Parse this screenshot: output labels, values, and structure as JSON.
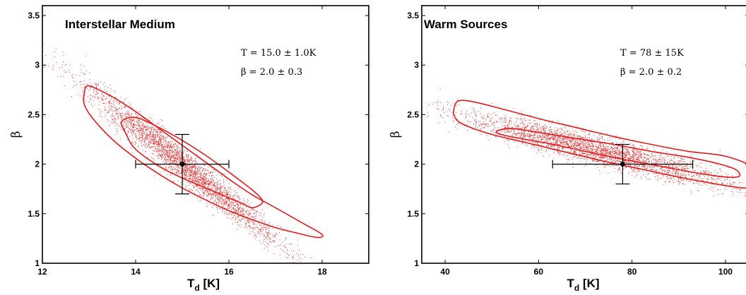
{
  "chart_data": [
    {
      "type": "scatter",
      "title": "Interstellar Medium",
      "xlabel_main": "T",
      "xlabel_sub": "d",
      "xlabel_unit": " [K]",
      "ylabel": "β",
      "xlim": [
        12,
        19
      ],
      "ylim": [
        1,
        3.6
      ],
      "xticks": [
        12,
        14,
        16,
        18
      ],
      "yticks": [
        1,
        1.5,
        2,
        2.5,
        3,
        3.5
      ],
      "ytick_labels": [
        "1",
        "1.5",
        "2",
        "2.5",
        "3",
        "3.5"
      ],
      "annotations": [
        "T = 15.0 ± 1.0K",
        "β = 2.0 ± 0.3"
      ],
      "point": {
        "x": 15.0,
        "y": 2.0,
        "xerr": 1.0,
        "yerr": 0.3
      },
      "cloud": {
        "center": [
          15.0,
          2.0
        ],
        "slope": -0.38,
        "along_sd": 1.05,
        "across_sd": 0.085,
        "n": 3200
      },
      "contours": [
        {
          "name": "inner",
          "x": [
            13.7,
            13.8,
            14.0,
            14.5,
            15.0,
            15.5,
            16.0,
            16.3,
            16.5,
            16.7,
            16.7,
            16.5,
            16.0,
            15.5,
            15.0,
            14.5,
            14.0,
            13.7
          ],
          "y": [
            2.43,
            2.3,
            2.15,
            1.98,
            1.86,
            1.76,
            1.66,
            1.6,
            1.56,
            1.6,
            1.65,
            1.74,
            1.92,
            2.09,
            2.24,
            2.37,
            2.47,
            2.43
          ]
        },
        {
          "name": "outer",
          "x": [
            12.9,
            12.9,
            13.1,
            13.5,
            14.0,
            14.5,
            15.0,
            15.5,
            16.0,
            16.5,
            17.0,
            17.5,
            17.9,
            18.0,
            17.6,
            17.0,
            16.5,
            16.0,
            15.5,
            15.0,
            14.5,
            14.0,
            13.5,
            13.0,
            12.9
          ],
          "y": [
            2.72,
            2.6,
            2.45,
            2.25,
            2.06,
            1.9,
            1.76,
            1.64,
            1.53,
            1.44,
            1.36,
            1.3,
            1.26,
            1.29,
            1.4,
            1.56,
            1.69,
            1.85,
            2.02,
            2.19,
            2.36,
            2.53,
            2.68,
            2.79,
            2.72
          ]
        }
      ]
    },
    {
      "type": "scatter",
      "title": "Warm Sources",
      "xlabel_main": "T",
      "xlabel_sub": "d",
      "xlabel_unit": " [K]",
      "ylabel": "β",
      "xlim": [
        35,
        105
      ],
      "ylim": [
        1,
        3.6
      ],
      "xticks": [
        40,
        60,
        80,
        100
      ],
      "yticks": [
        1,
        1.5,
        2,
        2.5,
        3,
        3.5
      ],
      "ytick_labels": [
        "1",
        "1.5",
        "2",
        "2.5",
        "3",
        "3.5"
      ],
      "annotations": [
        "T = 78 ± 15K",
        "β = 2.0 ± 0.2"
      ],
      "point": {
        "x": 78,
        "y": 2.0,
        "xerr": 15,
        "yerr": 0.2
      },
      "cloud": {
        "center": [
          72,
          2.15
        ],
        "slope": -0.0117,
        "along_sd": 14,
        "across_sd": 0.07,
        "n": 3200
      },
      "contours": [
        {
          "name": "inner",
          "x": [
            52,
            56,
            62,
            70,
            78,
            86,
            94,
            100,
            103,
            102,
            98,
            92,
            84,
            76,
            68,
            60,
            54,
            51,
            52
          ],
          "y": [
            2.3,
            2.26,
            2.21,
            2.13,
            2.05,
            1.98,
            1.91,
            1.87,
            1.88,
            1.95,
            2.01,
            2.07,
            2.13,
            2.2,
            2.26,
            2.32,
            2.36,
            2.33,
            2.3
          ]
        },
        {
          "name": "outer",
          "x": [
            42,
            42,
            44,
            50,
            58,
            66,
            74,
            82,
            90,
            98,
            104,
            106,
            106,
            100,
            92,
            84,
            76,
            68,
            60,
            52,
            46,
            43,
            42
          ],
          "y": [
            2.58,
            2.48,
            2.4,
            2.3,
            2.21,
            2.12,
            2.03,
            1.95,
            1.87,
            1.8,
            1.76,
            1.8,
            1.96,
            2.08,
            2.13,
            2.2,
            2.28,
            2.37,
            2.46,
            2.56,
            2.63,
            2.64,
            2.58
          ]
        }
      ]
    }
  ],
  "colors": {
    "contour": "#e41a1c",
    "scatter": "#e03030",
    "axes": "#000000",
    "errorbar": "#000000"
  }
}
